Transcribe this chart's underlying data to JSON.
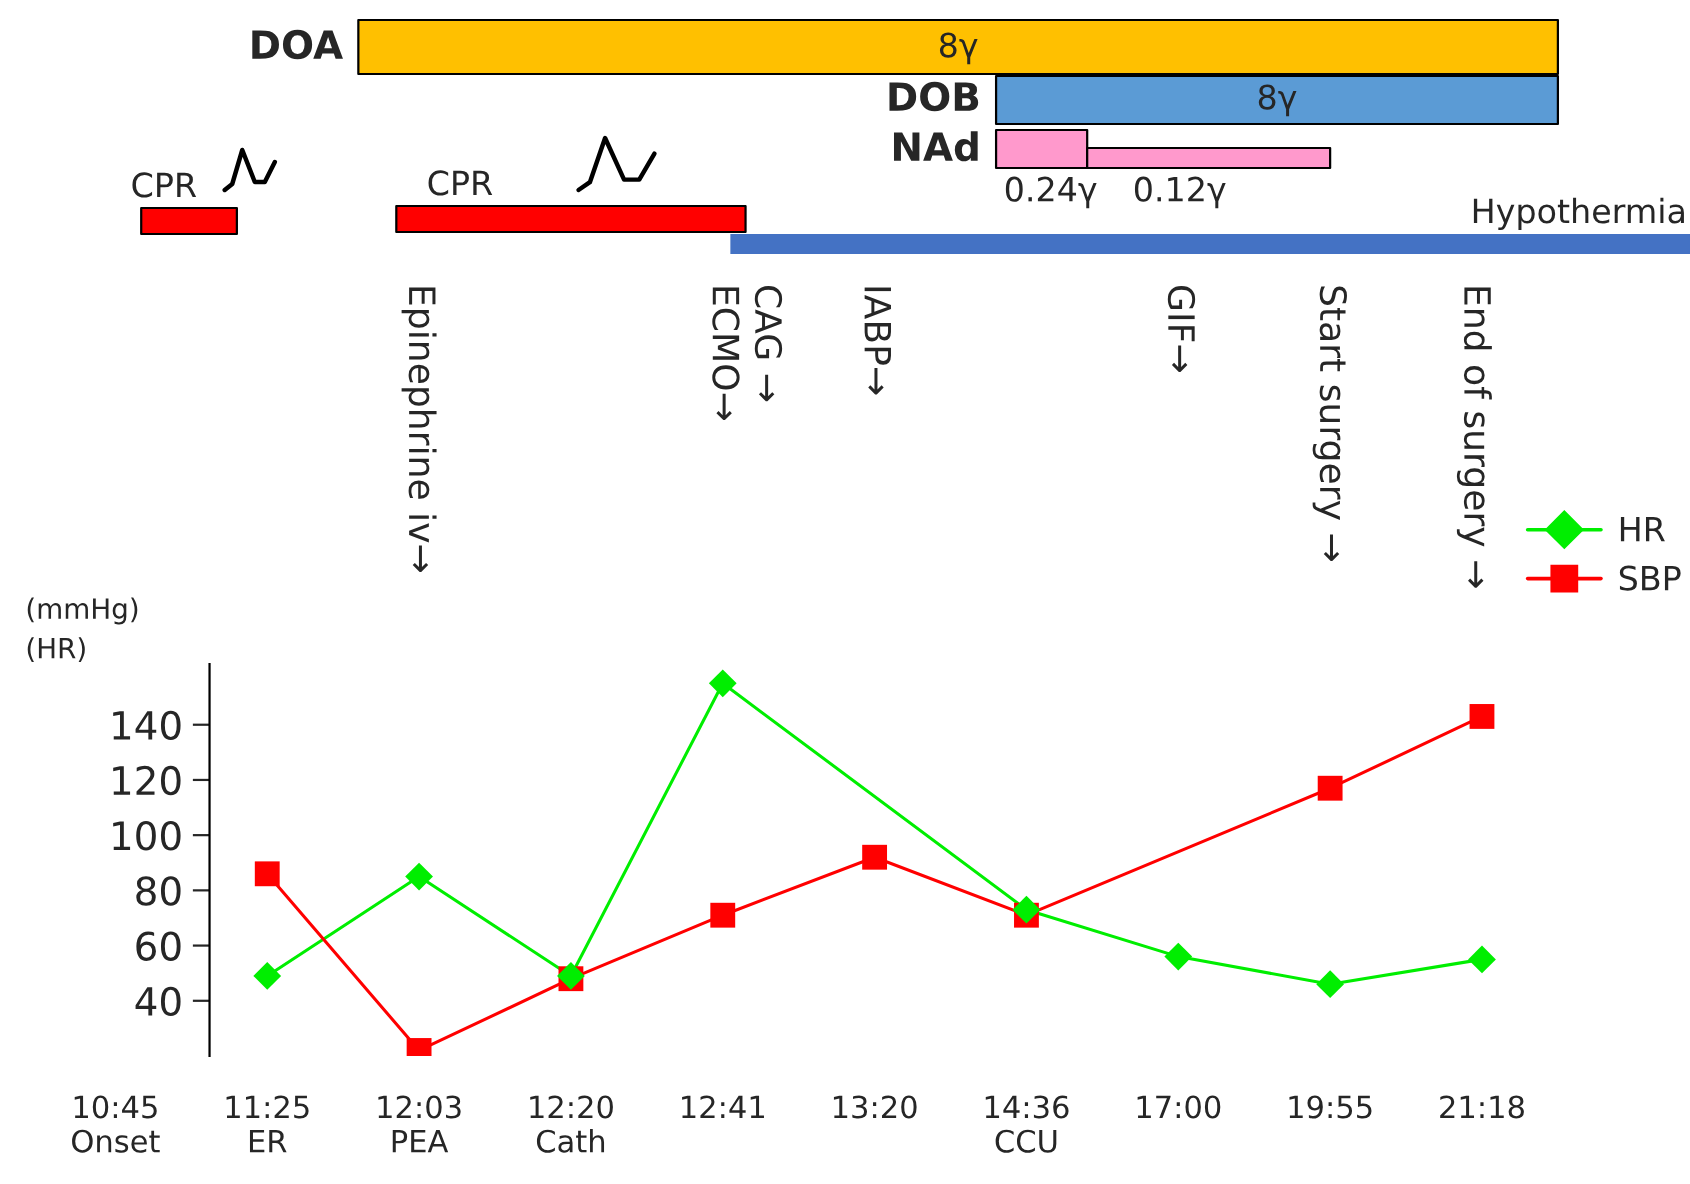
{
  "chart_data": {
    "type": "line",
    "ylabel": "(mmHg)\n(HR)",
    "categories": [
      "10:45\nOnset",
      "11:25\nER",
      "12:03\nPEA",
      "12:20\nCath",
      "12:41",
      "13:20",
      "14:36\nCCU",
      "17:00",
      "19:55",
      "21:18"
    ],
    "series": [
      {
        "name": "HR",
        "color": "#00ee00",
        "marker": "diamond",
        "values": [
          null,
          49,
          85,
          49,
          155,
          null,
          73,
          56,
          46,
          55
        ]
      },
      {
        "name": "SBP",
        "color": "#ff0000",
        "marker": "square",
        "values": [
          null,
          86,
          22,
          48,
          71,
          92,
          71,
          null,
          117,
          143
        ]
      }
    ],
    "ylim": [
      20,
      162
    ],
    "yticks": [
      40,
      60,
      80,
      100,
      120,
      140
    ],
    "grid": false,
    "legend": "top right",
    "annotations": [
      "DOA",
      "8γ",
      "DOB",
      "8γ",
      "NAd",
      "0.24γ",
      "0.12γ",
      "CPR",
      "CPR",
      "Hypothermia",
      "Epinephrine iv→",
      "ECMO→",
      "CAG →",
      "IABP→",
      "GIF→",
      "Start surgery →",
      "End of surgery →"
    ]
  }
}
